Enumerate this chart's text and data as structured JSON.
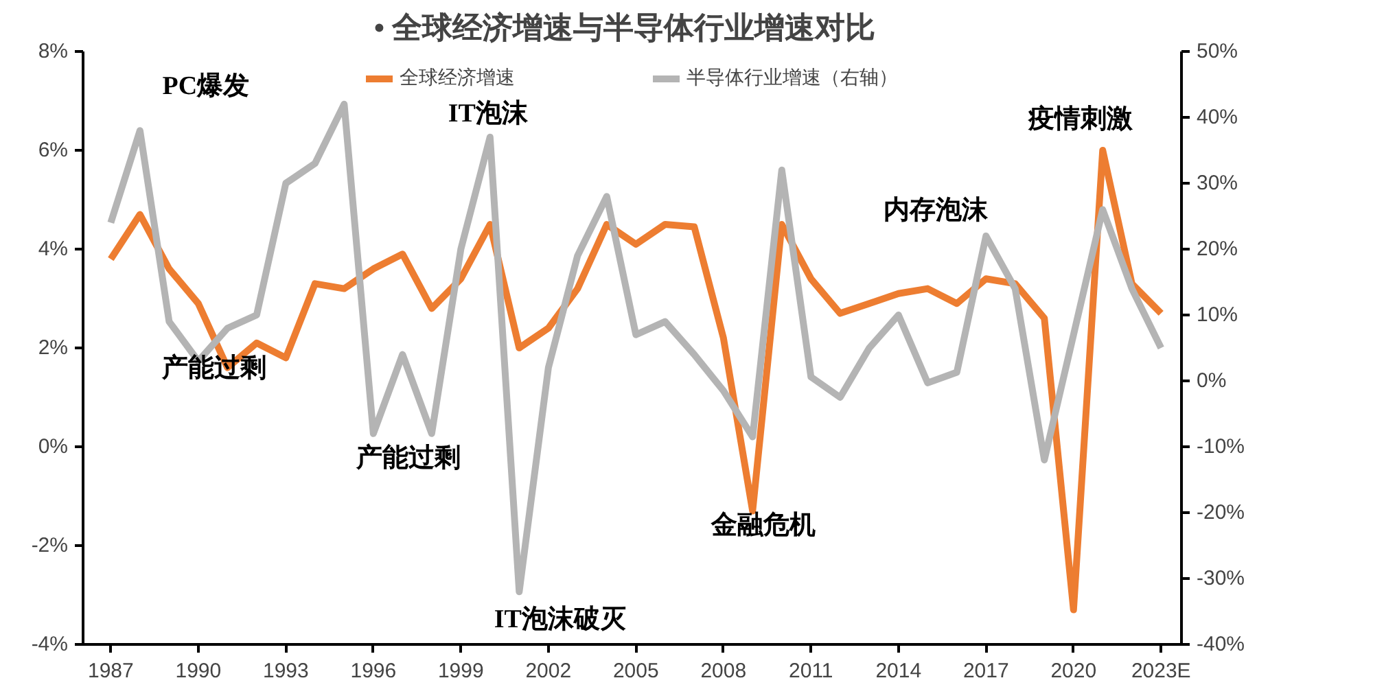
{
  "chart_data": {
    "type": "line",
    "title": "•   全球经济增速与半导体行业增速对比",
    "categories": [
      "1987",
      null,
      null,
      "1990",
      null,
      null,
      "1993",
      null,
      null,
      "1996",
      null,
      null,
      "1999",
      null,
      null,
      "2002",
      null,
      null,
      "2005",
      null,
      null,
      "2008",
      null,
      null,
      "2011",
      null,
      null,
      "2014",
      null,
      null,
      "2017",
      null,
      null,
      "2020",
      null,
      null,
      "2023E"
    ],
    "series": [
      {
        "name": "全球经济增速",
        "color": "#ed7d31",
        "values": [
          3.8,
          4.7,
          3.6,
          2.9,
          1.6,
          2.1,
          1.8,
          3.3,
          3.2,
          3.6,
          3.9,
          2.8,
          3.4,
          4.5,
          2.0,
          2.4,
          3.2,
          4.5,
          4.1,
          4.5,
          4.45,
          2.2,
          -1.3,
          4.5,
          3.4,
          2.7,
          2.9,
          3.1,
          3.2,
          2.9,
          3.4,
          3.3,
          2.6,
          -3.3,
          6.0,
          3.3,
          2.7
        ]
      },
      {
        "name": "半导体行业增速（右轴）",
        "color": "#b4b4b4",
        "axis": "y2",
        "values": [
          24,
          38,
          9,
          3,
          8,
          10,
          30,
          33,
          42,
          -8,
          4,
          -8,
          20,
          37,
          -32,
          2,
          19,
          28,
          7,
          9,
          4,
          -1.5,
          -8.5,
          32,
          0.6,
          -2.5,
          5,
          10,
          -0.3,
          1.3,
          22,
          14,
          -12,
          7,
          26,
          14,
          5
        ]
      }
    ],
    "ylim": [
      -4,
      8
    ],
    "yticks": [
      {
        "value": -4,
        "label": "-4%"
      },
      {
        "value": -2,
        "label": "-2%"
      },
      {
        "value": 0,
        "label": "0%"
      },
      {
        "value": 2,
        "label": "2%"
      },
      {
        "value": 4,
        "label": "4%"
      },
      {
        "value": 6,
        "label": "6%"
      },
      {
        "value": 8,
        "label": "8%"
      }
    ],
    "y2lim": [
      -40,
      50
    ],
    "y2ticks": [
      {
        "value": -40,
        "label": "-40%"
      },
      {
        "value": -30,
        "label": "-30%"
      },
      {
        "value": -20,
        "label": "-20%"
      },
      {
        "value": -10,
        "label": "-10%"
      },
      {
        "value": 0,
        "label": "0%"
      },
      {
        "value": 10,
        "label": "10%"
      },
      {
        "value": 20,
        "label": "20%"
      },
      {
        "value": 30,
        "label": "30%"
      },
      {
        "value": 40,
        "label": "40%"
      },
      {
        "value": 50,
        "label": "50%"
      }
    ],
    "annotations": [
      "PC爆发",
      "产能过剩",
      "产能过剩",
      "IT泡沫",
      "IT泡沫破灭",
      "金融危机",
      "内存泡沫",
      "疫情刺激"
    ],
    "legend": "top",
    "grid": false,
    "line_style": "solid",
    "marker": "none"
  }
}
